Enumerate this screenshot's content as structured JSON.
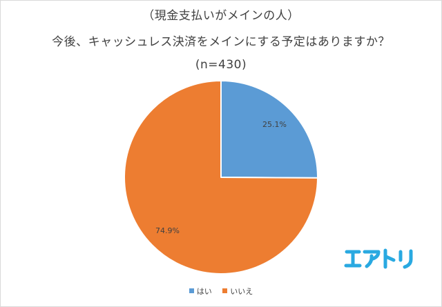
{
  "chart_data": {
    "type": "pie",
    "title_lines": [
      "（現金支払いがメインの人）",
      "今後、キャッシュレス決済をメインにする予定はありますか？",
      "(n=430)"
    ],
    "categories": [
      "はい",
      "いいえ"
    ],
    "values": [
      25.1,
      74.9
    ],
    "value_labels": [
      "25.1%",
      "74.9%"
    ],
    "colors": [
      "#5b9bd5",
      "#ed7d31"
    ],
    "start_angle_deg": 0,
    "direction": "clockwise",
    "legend_position": "bottom"
  },
  "brand": {
    "logo_text": "エアトリ",
    "logo_color": "#29a9e1"
  }
}
